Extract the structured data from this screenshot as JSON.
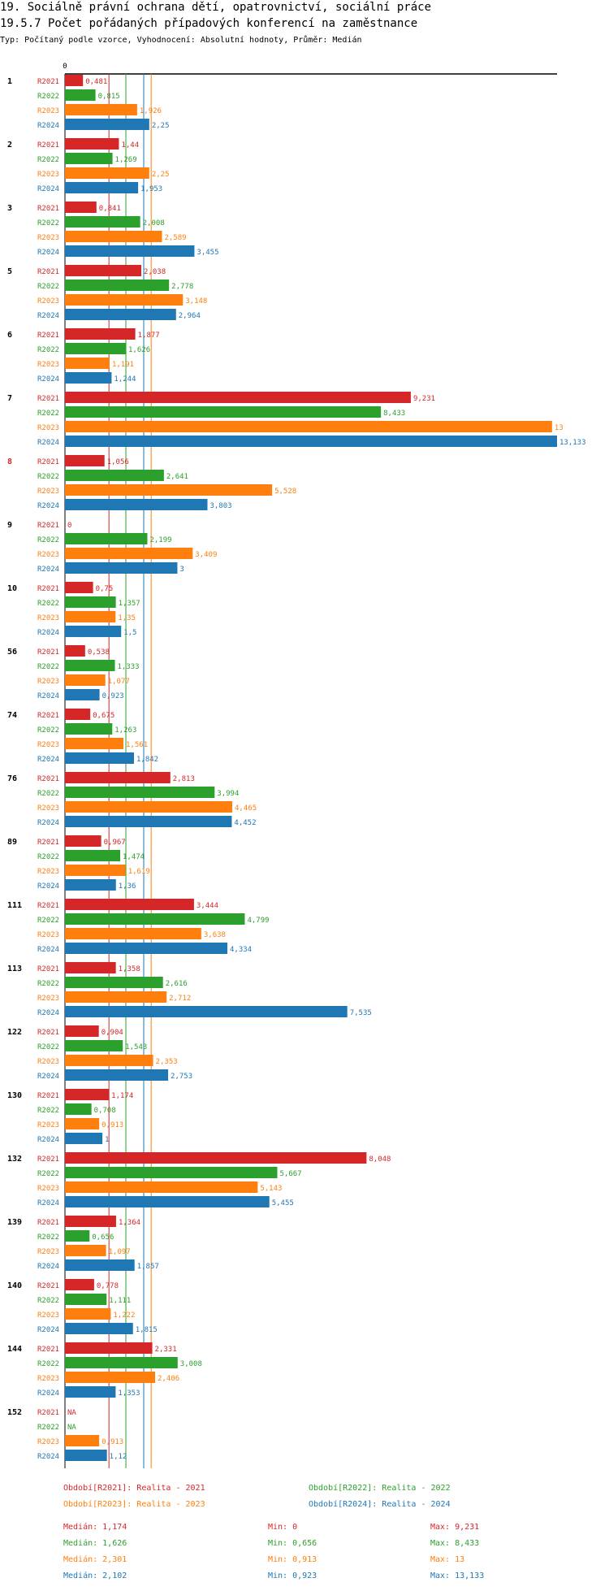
{
  "header": {
    "title": "19. Sociálně právní ochrana dětí, opatrovnictví, sociální práce",
    "subtitle": "19.5.7 Počet pořádaných případových konferencí na zaměstnance",
    "meta": "Typ: Počítaný podle vzorce, Vyhodnocení: Absolutní hodnoty, Průměr: Medián"
  },
  "chart_data": {
    "type": "bar",
    "orientation": "horizontal",
    "xlim": [
      0,
      13.133
    ],
    "axis_zero_label": "0",
    "series": [
      {
        "key": "R2021",
        "label": "Období[R2021]: Realita - 2021",
        "color": "#d62728",
        "stats": {
          "median": "Medián: 1,174",
          "min": "Min: 0",
          "max": "Max: 9,231"
        },
        "median_value": 1.174
      },
      {
        "key": "R2022",
        "label": "Období[R2022]: Realita - 2022",
        "color": "#2ca02c",
        "stats": {
          "median": "Medián: 1,626",
          "min": "Min: 0,656",
          "max": "Max: 8,433"
        },
        "median_value": 1.626
      },
      {
        "key": "R2023",
        "label": "Období[R2023]: Realita - 2023",
        "color": "#ff7f0e",
        "stats": {
          "median": "Medián: 2,301",
          "min": "Min: 0,913",
          "max": "Max: 13"
        },
        "median_value": 2.301
      },
      {
        "key": "R2024",
        "label": "Období[R2024]: Realita - 2024",
        "color": "#1f77b4",
        "stats": {
          "median": "Medián: 2,102",
          "min": "Min: 0,923",
          "max": "Max: 13,133"
        },
        "median_value": 2.102
      }
    ],
    "groups": [
      {
        "label": "1",
        "highlight": false,
        "values": [
          0.481,
          0.815,
          1.926,
          2.25
        ],
        "labels": [
          "0,481",
          "0,815",
          "1,926",
          "2,25"
        ]
      },
      {
        "label": "2",
        "highlight": false,
        "values": [
          1.44,
          1.269,
          2.25,
          1.953
        ],
        "labels": [
          "1,44",
          "1,269",
          "2,25",
          "1,953"
        ]
      },
      {
        "label": "3",
        "highlight": false,
        "values": [
          0.841,
          2.008,
          2.589,
          3.455
        ],
        "labels": [
          "0,841",
          "2,008",
          "2,589",
          "3,455"
        ]
      },
      {
        "label": "5",
        "highlight": false,
        "values": [
          2.038,
          2.778,
          3.148,
          2.964
        ],
        "labels": [
          "2,038",
          "2,778",
          "3,148",
          "2,964"
        ]
      },
      {
        "label": "6",
        "highlight": false,
        "values": [
          1.877,
          1.626,
          1.191,
          1.244
        ],
        "labels": [
          "1,877",
          "1,626",
          "1,191",
          "1,244"
        ]
      },
      {
        "label": "7",
        "highlight": false,
        "values": [
          9.231,
          8.433,
          13,
          13.133
        ],
        "labels": [
          "9,231",
          "8,433",
          "13",
          "13,133"
        ]
      },
      {
        "label": "8",
        "highlight": true,
        "values": [
          1.056,
          2.641,
          5.528,
          3.803
        ],
        "labels": [
          "1,056",
          "2,641",
          "5,528",
          "3,803"
        ]
      },
      {
        "label": "9",
        "highlight": false,
        "values": [
          0,
          2.199,
          3.409,
          3
        ],
        "labels": [
          "0",
          "2,199",
          "3,409",
          "3"
        ]
      },
      {
        "label": "10",
        "highlight": false,
        "values": [
          0.75,
          1.357,
          1.35,
          1.5
        ],
        "labels": [
          "0,75",
          "1,357",
          "1,35",
          "1,5"
        ]
      },
      {
        "label": "56",
        "highlight": false,
        "values": [
          0.538,
          1.333,
          1.077,
          0.923
        ],
        "labels": [
          "0,538",
          "1,333",
          "1,077",
          "0,923"
        ]
      },
      {
        "label": "74",
        "highlight": false,
        "values": [
          0.675,
          1.263,
          1.561,
          1.842
        ],
        "labels": [
          "0,675",
          "1,263",
          "1,561",
          "1,842"
        ]
      },
      {
        "label": "76",
        "highlight": false,
        "values": [
          2.813,
          3.994,
          4.465,
          4.452
        ],
        "labels": [
          "2,813",
          "3,994",
          "4,465",
          "4,452"
        ]
      },
      {
        "label": "89",
        "highlight": false,
        "values": [
          0.967,
          1.474,
          1.619,
          1.36
        ],
        "labels": [
          "0,967",
          "1,474",
          "1,619",
          "1,36"
        ]
      },
      {
        "label": "111",
        "highlight": false,
        "values": [
          3.444,
          4.799,
          3.638,
          4.334
        ],
        "labels": [
          "3,444",
          "4,799",
          "3,638",
          "4,334"
        ]
      },
      {
        "label": "113",
        "highlight": false,
        "values": [
          1.358,
          2.616,
          2.712,
          7.535
        ],
        "labels": [
          "1,358",
          "2,616",
          "2,712",
          "7,535"
        ]
      },
      {
        "label": "122",
        "highlight": false,
        "values": [
          0.904,
          1.543,
          2.353,
          2.753
        ],
        "labels": [
          "0,904",
          "1,543",
          "2,353",
          "2,753"
        ]
      },
      {
        "label": "130",
        "highlight": false,
        "values": [
          1.174,
          0.708,
          0.913,
          1
        ],
        "labels": [
          "1,174",
          "0,708",
          "0,913",
          "1"
        ]
      },
      {
        "label": "132",
        "highlight": false,
        "values": [
          8.048,
          5.667,
          5.143,
          5.455
        ],
        "labels": [
          "8,048",
          "5,667",
          "5,143",
          "5,455"
        ]
      },
      {
        "label": "139",
        "highlight": false,
        "values": [
          1.364,
          0.656,
          1.097,
          1.857
        ],
        "labels": [
          "1,364",
          "0,656",
          "1,097",
          "1,857"
        ]
      },
      {
        "label": "140",
        "highlight": false,
        "values": [
          0.778,
          1.111,
          1.222,
          1.815
        ],
        "labels": [
          "0,778",
          "1,111",
          "1,222",
          "1,815"
        ]
      },
      {
        "label": "144",
        "highlight": false,
        "values": [
          2.331,
          3.008,
          2.406,
          1.353
        ],
        "labels": [
          "2,331",
          "3,008",
          "2,406",
          "1,353"
        ]
      },
      {
        "label": "152",
        "highlight": false,
        "values": [
          null,
          null,
          0.913,
          1.12
        ],
        "labels": [
          "NA",
          "NA",
          "0,913",
          "1,12"
        ]
      }
    ]
  }
}
